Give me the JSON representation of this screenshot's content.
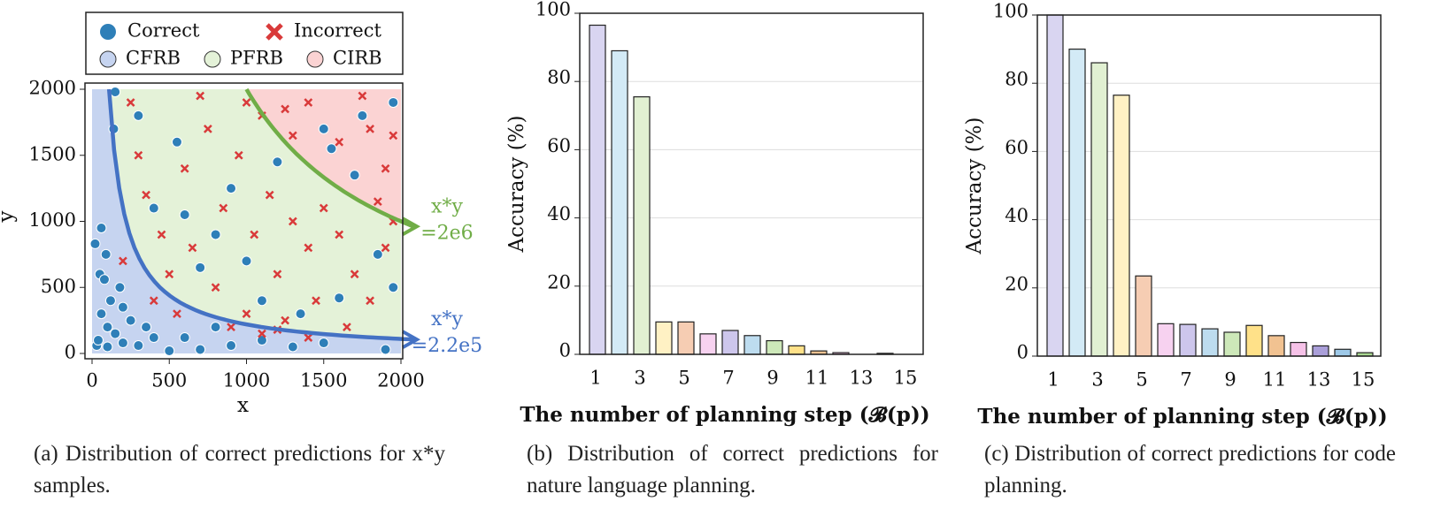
{
  "chart_data": [
    {
      "type": "scatter",
      "xlabel": "x",
      "ylabel": "y",
      "xlim": [
        0,
        2000
      ],
      "ylim": [
        0,
        2000
      ],
      "xticks": [
        0,
        500,
        1000,
        1500,
        2000
      ],
      "yticks": [
        0,
        500,
        1000,
        1500,
        2000
      ],
      "regions": [
        {
          "name": "CFRB",
          "color": "#c6d4f0"
        },
        {
          "name": "PFRB",
          "color": "#e4f2d8"
        },
        {
          "name": "CIRB",
          "color": "#fbd3d3"
        }
      ],
      "curves": [
        {
          "label": "x*y",
          "value_label": "=2.2e5",
          "value": 220000,
          "color": "#4472c4"
        },
        {
          "label": "x*y",
          "value_label": "=2e6",
          "value": 2000000,
          "color": "#70ad47"
        }
      ],
      "series": [
        {
          "name": "Correct",
          "marker": "circle",
          "color": "#2e7fb8",
          "x": [
            20,
            50,
            80,
            60,
            100,
            150,
            30,
            40,
            100,
            200,
            300,
            400,
            500,
            600,
            700,
            800,
            900,
            1100,
            1300,
            1500,
            1900,
            60,
            120,
            200,
            250,
            350,
            150,
            140,
            90,
            180,
            300,
            400,
            600,
            700,
            800,
            1000,
            1200,
            1350,
            1600,
            1950,
            550,
            900,
            1100,
            1850,
            1500,
            1750,
            1700,
            1950,
            1550
          ],
          "y": [
            830,
            600,
            560,
            300,
            200,
            150,
            60,
            100,
            50,
            80,
            60,
            120,
            20,
            120,
            30,
            200,
            60,
            100,
            50,
            80,
            30,
            950,
            400,
            350,
            250,
            200,
            1980,
            1700,
            750,
            500,
            1800,
            1100,
            1050,
            650,
            900,
            700,
            1450,
            300,
            420,
            500,
            1600,
            1250,
            400,
            750,
            1700,
            1800,
            1350,
            1900,
            1550
          ]
        },
        {
          "name": "Incorrect",
          "marker": "x",
          "color": "#d93a3a",
          "x": [
            250,
            300,
            350,
            450,
            500,
            600,
            650,
            750,
            800,
            850,
            950,
            1000,
            1050,
            1150,
            1200,
            1250,
            1300,
            1400,
            1450,
            1500,
            1600,
            1650,
            1700,
            1800,
            1900,
            1950,
            1100,
            700,
            400,
            550,
            1000,
            1300,
            1400,
            1600,
            1800,
            1900,
            1750,
            1950,
            1850,
            1250,
            200,
            900,
            1100,
            1400,
            1200
          ],
          "y": [
            1900,
            1500,
            1200,
            900,
            600,
            1400,
            800,
            1700,
            500,
            1100,
            1500,
            300,
            900,
            1200,
            600,
            250,
            1000,
            800,
            400,
            1100,
            900,
            200,
            600,
            400,
            800,
            1000,
            1800,
            1950,
            400,
            300,
            1900,
            1650,
            1900,
            1600,
            1700,
            1400,
            1950,
            1650,
            1150,
            1850,
            700,
            200,
            150,
            120,
            180
          ]
        }
      ]
    },
    {
      "type": "bar",
      "xlabel": "The number of planning step (𝓑(p))",
      "ylabel": "Accuracy (%)",
      "caption": "(b) Distribution of correct predictions for nature language planning.",
      "categories": [
        "1",
        null,
        "3",
        null,
        "5",
        null,
        "7",
        null,
        "9",
        null,
        "11",
        null,
        "13",
        null,
        "15"
      ],
      "values": [
        96.5,
        89,
        75.5,
        9.5,
        9.5,
        6,
        7,
        5.5,
        4,
        2.5,
        1,
        0.5,
        0,
        0.3,
        0
      ],
      "colors": [
        "#d9d5f1",
        "#d3eaf6",
        "#e1f0d2",
        "#fff1c4",
        "#f6cdb3",
        "#f7d2f0",
        "#cdc6ec",
        "#bddcef",
        "#cde8b9",
        "#ffe189",
        "#f1c291",
        "#f6c2e8",
        "#aa9fd9",
        "#9ec9e8",
        "#a9d891"
      ],
      "ylim": [
        0,
        100
      ],
      "yticks": [
        0,
        20,
        40,
        60,
        80,
        100
      ],
      "grid": true
    },
    {
      "type": "bar",
      "xlabel": "The number of planning step (𝓑(p))",
      "ylabel": "Accuracy (%)",
      "caption": "(c) Distribution of correct predictions for code planning.",
      "categories": [
        "1",
        null,
        "3",
        null,
        "5",
        null,
        "7",
        null,
        "9",
        null,
        "11",
        null,
        "13",
        null,
        "15"
      ],
      "values": [
        100,
        90,
        86,
        76.5,
        23.5,
        9.5,
        9.3,
        8,
        7,
        9,
        6,
        4,
        3,
        2,
        1
      ],
      "colors": [
        "#d9d5f1",
        "#d3eaf6",
        "#e1f0d2",
        "#fff1c4",
        "#f6cdb3",
        "#f7d2f0",
        "#cdc6ec",
        "#bddcef",
        "#cde8b9",
        "#ffe189",
        "#f1c291",
        "#f6c2e8",
        "#aa9fd9",
        "#9ec9e8",
        "#a9d891"
      ],
      "ylim": [
        0,
        100
      ],
      "yticks": [
        0,
        20,
        40,
        60,
        80,
        100
      ],
      "grid": true
    }
  ],
  "caption_a": "(a) Distribution of correct predictions for x*y samples."
}
